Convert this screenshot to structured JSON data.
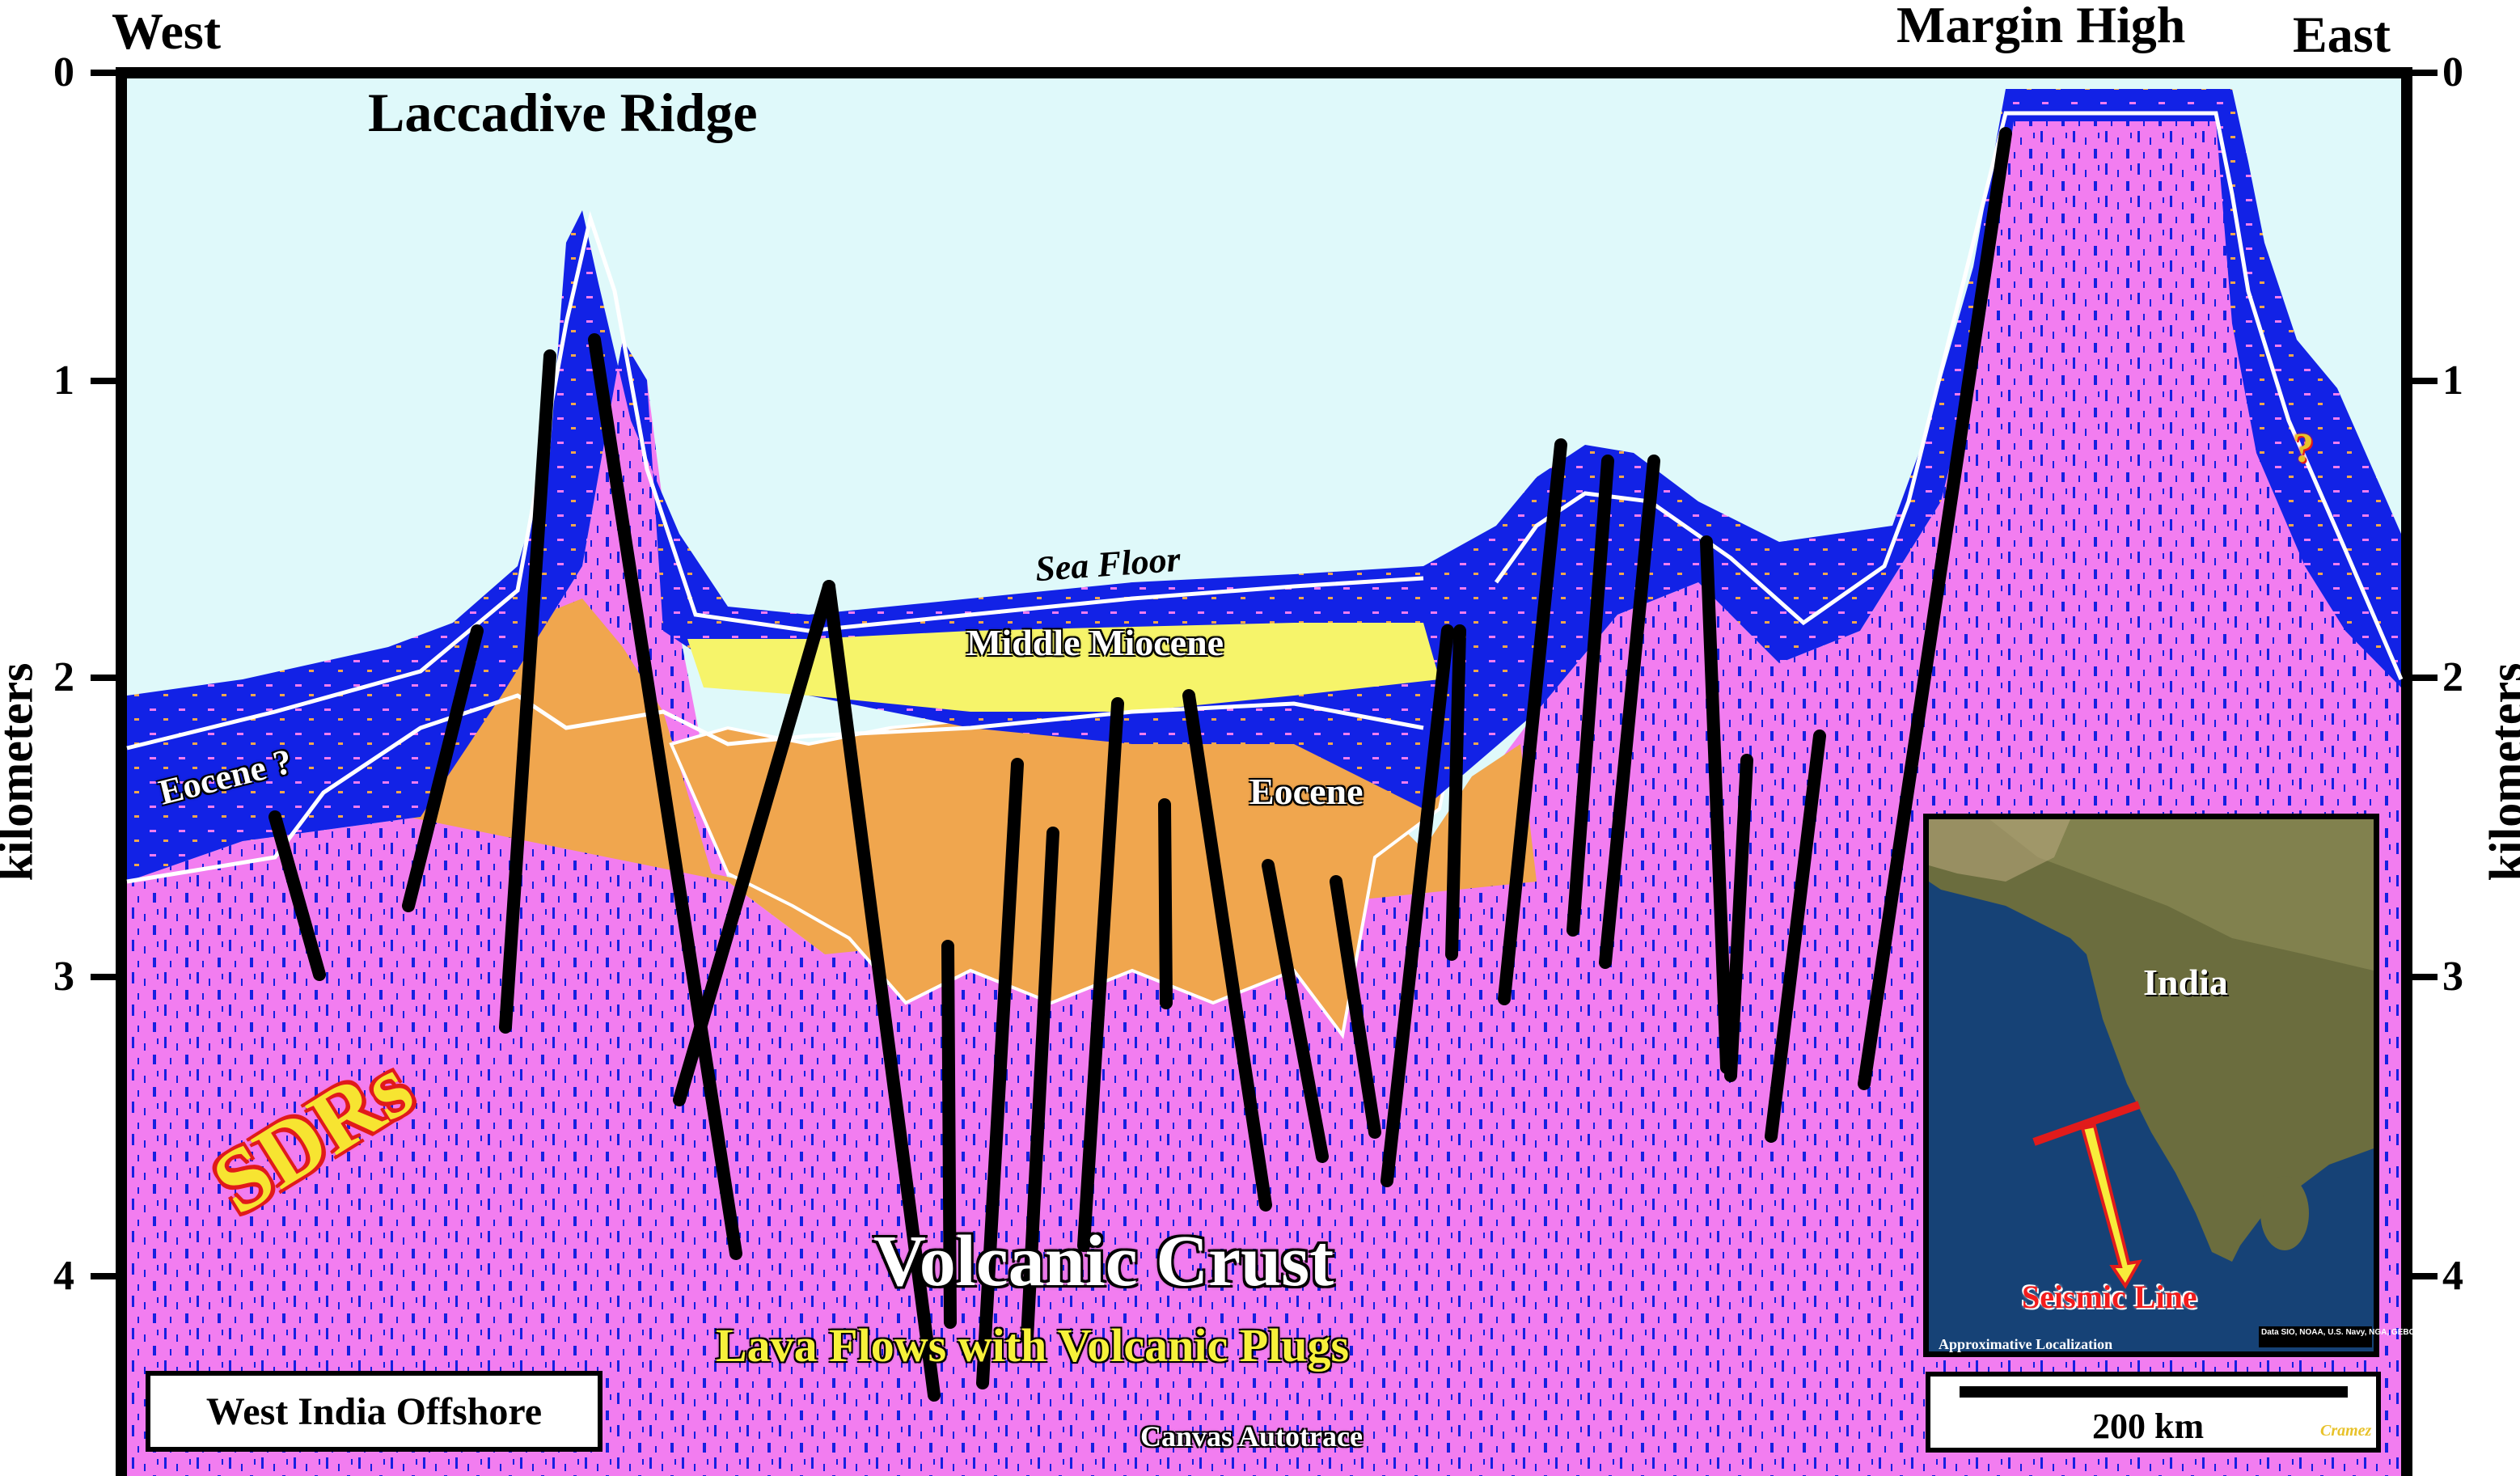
{
  "edge_labels": {
    "west": "West",
    "east": "East",
    "margin_high": "Margin High"
  },
  "axis": {
    "title": "kilometers",
    "ticks": [
      "0",
      "1",
      "2",
      "3",
      "4"
    ]
  },
  "features": {
    "laccadive_ridge": "Laccadive Ridge",
    "sea_floor": "Sea Floor",
    "middle_miocene": "Middle Miocene",
    "eocene": "Eocene",
    "eocene_q": "Eocene ?",
    "question": "?",
    "sdrs": "SDRs",
    "volcanic_crust": "Volcanic Crust",
    "lava_flows": "Lava Flows with Volcanic Plugs",
    "canvas": "Canvas Autotrace"
  },
  "region_box": "West India Offshore",
  "inset": {
    "country": "India",
    "seismic_line": "Seismic Line",
    "localization": "Approximative Localization",
    "attribution": "Data SIO, NOAA, U.S. Navy, NGA, GEBCO"
  },
  "scale_bar": {
    "label": "200 km",
    "author": "Cramez"
  },
  "colors": {
    "water": "#dff9fa",
    "blue": "#0f1ee8",
    "pink": "#f27df0",
    "orange": "#f0a64e",
    "yellow": "#f6f46a",
    "fault": "#000000"
  }
}
